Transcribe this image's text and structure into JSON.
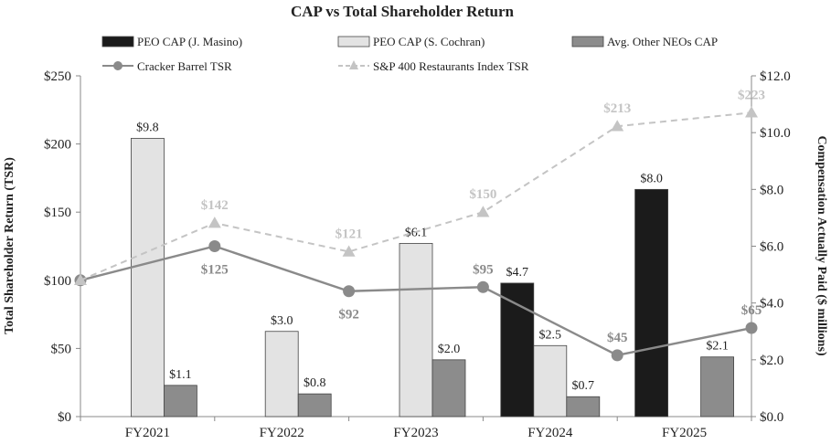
{
  "chart_data": {
    "type": "bar+line",
    "title": "CAP vs Total Shareholder Return",
    "categories": [
      "FY2021",
      "FY2022",
      "FY2023",
      "FY2024",
      "FY2025"
    ],
    "y_left": {
      "label": "Total Shareholder Return (TSR)",
      "range": [
        0,
        250
      ],
      "ticks": [
        0,
        50,
        100,
        150,
        200,
        250
      ],
      "tick_labels": [
        "$0",
        "$50",
        "$100",
        "$150",
        "$200",
        "$250"
      ]
    },
    "y_right": {
      "label": "Compensation Actually Paid ($ millions)",
      "range": [
        0,
        12
      ],
      "ticks": [
        0,
        2,
        4,
        6,
        8,
        10,
        12
      ],
      "tick_labels": [
        "$0.0",
        "$2.0",
        "$4.0",
        "$6.0",
        "$8.0",
        "$10.0",
        "$12.0"
      ]
    },
    "bar_series": [
      {
        "name": "PEO CAP (J. Masino)",
        "color": "#1b1b1b",
        "values": [
          null,
          null,
          null,
          4.7,
          8.0
        ],
        "labels": [
          "",
          "",
          "",
          "$4.7",
          "$8.0"
        ]
      },
      {
        "name": "PEO CAP (S. Cochran)",
        "color": "#e3e3e3",
        "values": [
          9.8,
          3.0,
          6.1,
          2.5,
          null
        ],
        "labels": [
          "$9.8",
          "$3.0",
          "$6.1",
          "$2.5",
          ""
        ]
      },
      {
        "name": "Avg. Other NEOs CAP",
        "color": "#8c8c8c",
        "values": [
          1.1,
          0.8,
          2.0,
          0.7,
          2.1
        ],
        "labels": [
          "$1.1",
          "$0.8",
          "$2.0",
          "$0.7",
          "$2.1"
        ]
      }
    ],
    "line_series": [
      {
        "name": "Cracker Barrel TSR",
        "color": "#8a8a8a",
        "style": "solid",
        "marker": "circle",
        "values": [
          100,
          125,
          92,
          95,
          45,
          65
        ],
        "labels": [
          "",
          "$125",
          "$92",
          "$95",
          "$45",
          "$65"
        ]
      },
      {
        "name": "S&P 400 Restaurants Index TSR",
        "color": "#c4c4c4",
        "style": "dashed",
        "marker": "triangle",
        "values": [
          100,
          142,
          121,
          150,
          213,
          223
        ],
        "labels": [
          "",
          "$142",
          "$121",
          "$150",
          "$213",
          "$223"
        ]
      }
    ]
  }
}
